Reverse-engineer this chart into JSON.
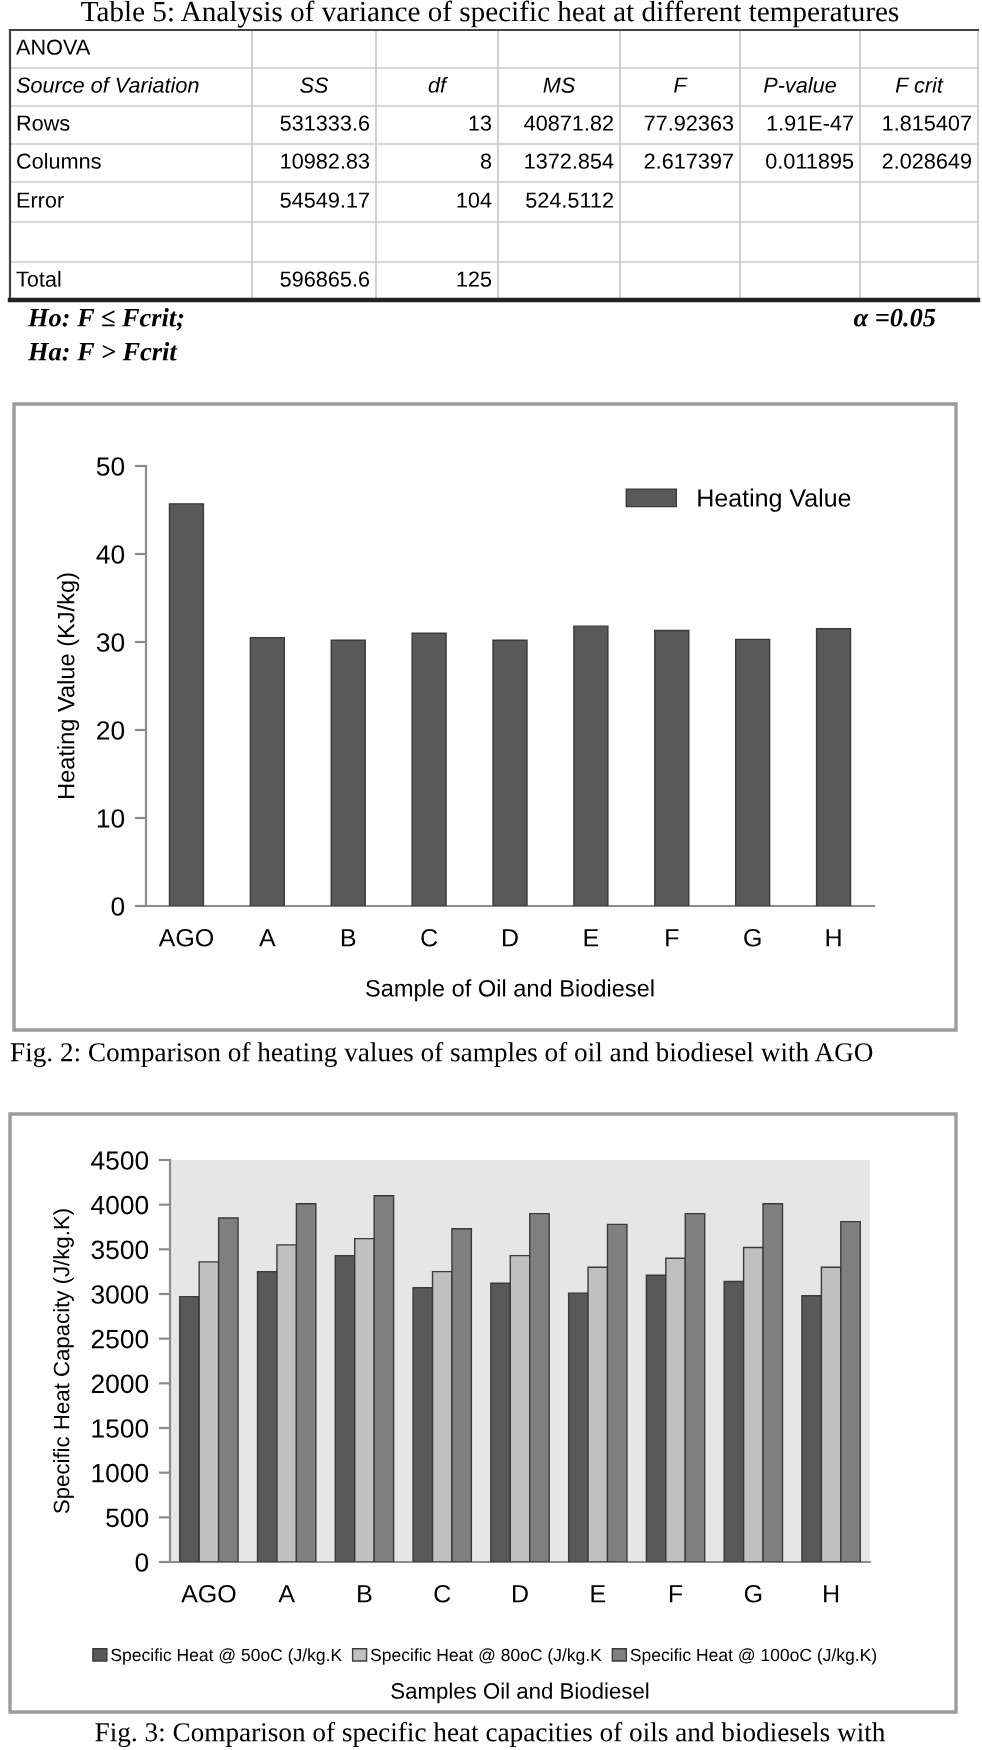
{
  "chart_data": [
    {
      "type": "other",
      "title": "Table 5: Analysis of variance of specific heat at different temperatures",
      "subtitle": "ANOVA",
      "categories": [
        "Source of Variation",
        "SS",
        "df",
        "MS",
        "F",
        "P-value",
        "F crit"
      ],
      "y_categories": [
        "Rows",
        "Columns",
        "Error",
        null,
        "Total"
      ],
      "cell_labels": [
        [
          "531333.6",
          "13",
          "40871.82",
          "77.92363",
          "1.91E-47",
          "1.815407"
        ],
        [
          "10982.83",
          "8",
          "1372.854",
          "2.617397",
          "0.011895",
          "2.028649"
        ],
        [
          "54549.17",
          "104",
          "524.5112",
          null,
          null,
          null
        ],
        [
          null,
          null,
          null,
          null,
          null,
          null
        ],
        [
          "596865.6",
          "125",
          null,
          null,
          null,
          null
        ]
      ],
      "annotations": [
        "Ho: F ≤ Fcrit;",
        "Ha: F > Fcrit",
        "α =0.05"
      ]
    },
    {
      "type": "bar",
      "categories": [
        "AGO",
        "A",
        "B",
        "C",
        "D",
        "E",
        "F",
        "G",
        "H"
      ],
      "series": [
        {
          "name": "Heating Value",
          "color": "#595959",
          "values": [
            45.7,
            30.5,
            30.2,
            31.0,
            30.2,
            31.8,
            31.3,
            30.3,
            31.5
          ]
        }
      ],
      "ylim": [
        0,
        50
      ],
      "yticks": [
        0,
        10,
        20,
        30,
        40,
        50
      ],
      "xlabel": "Sample of Oil and Biodiesel",
      "ylabel": "Heating Value (KJ/kg)",
      "legend": "top right",
      "annotations": [
        "Fig. 2: Comparison of heating values of samples of oil and biodiesel with AGO"
      ]
    },
    {
      "type": "bar",
      "categories": [
        "AGO",
        "A",
        "B",
        "C",
        "D",
        "E",
        "F",
        "G",
        "H"
      ],
      "series": [
        {
          "name": "Specific Heat @ 50oC (J/kg.K",
          "color": "#595959",
          "values": [
            2970,
            3250,
            3430,
            3070,
            3120,
            3010,
            3210,
            3140,
            2980
          ]
        },
        {
          "name": "Specific Heat @ 80oC (J/kg.K",
          "color": "#c0c0c0",
          "values": [
            3360,
            3550,
            3620,
            3250,
            3430,
            3300,
            3400,
            3520,
            3300
          ]
        },
        {
          "name": "Specific Heat @ 100oC (J/kg.K)",
          "color": "#808080",
          "values": [
            3850,
            4010,
            4100,
            3730,
            3900,
            3780,
            3900,
            4010,
            3810
          ]
        }
      ],
      "ylim": [
        0,
        4500
      ],
      "yticks": [
        0,
        500,
        1000,
        1500,
        2000,
        2500,
        3000,
        3500,
        4000,
        4500
      ],
      "xlabel": "Samples Oil and Biodiesel",
      "ylabel": "Specific Heat Capacity (J/kg.K)",
      "legend": "bottom",
      "annotations": [
        "Fig. 3: Comparison of specific heat capacities of oils and biodiesels with"
      ]
    }
  ]
}
